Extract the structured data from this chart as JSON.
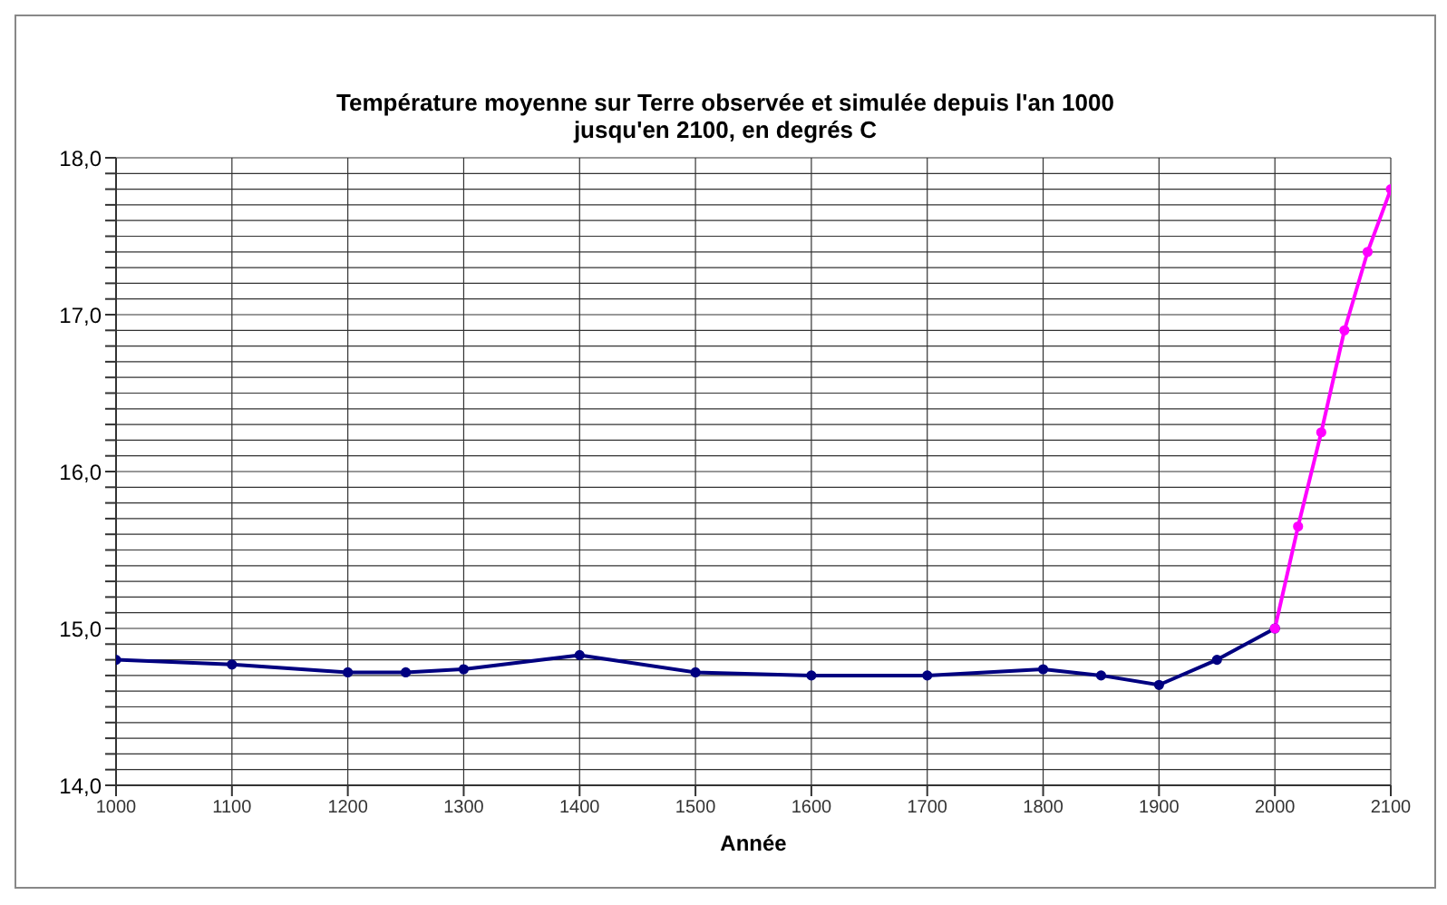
{
  "chart_data": {
    "type": "line",
    "title": "Température moyenne sur Terre observée et simulée depuis l'an 1000 jusqu'en 2100, en degrés C",
    "xlabel": "Année",
    "series": [
      {
        "color": "#000080",
        "x": [
          1000,
          1100,
          1200,
          1250,
          1300,
          1400,
          1500,
          1600,
          1700,
          1800,
          1850,
          1900,
          1950,
          2000
        ],
        "values": [
          14.8,
          14.77,
          14.72,
          14.72,
          14.74,
          14.83,
          14.72,
          14.7,
          14.7,
          14.74,
          14.7,
          14.64,
          14.8,
          15.0
        ]
      },
      {
        "color": "#ff00ff",
        "x": [
          2000,
          2020,
          2040,
          2060,
          2080,
          2100
        ],
        "values": [
          15.0,
          15.65,
          16.25,
          16.9,
          17.4,
          17.8
        ]
      }
    ],
    "xlim": [
      1000,
      2100
    ],
    "xticks": [
      1000,
      1100,
      1200,
      1300,
      1400,
      1500,
      1600,
      1700,
      1800,
      1900,
      2000,
      2100
    ],
    "ylim": [
      14,
      18
    ],
    "yticks": [
      {
        "value": 14,
        "label": "14,0"
      },
      {
        "value": 14.1,
        "label": null
      },
      {
        "value": 14.2,
        "label": null
      },
      {
        "value": 14.3,
        "label": null
      },
      {
        "value": 14.4,
        "label": null
      },
      {
        "value": 14.5,
        "label": null
      },
      {
        "value": 14.6,
        "label": null
      },
      {
        "value": 14.7,
        "label": null
      },
      {
        "value": 14.8,
        "label": null
      },
      {
        "value": 14.9,
        "label": null
      },
      {
        "value": 15,
        "label": "15,0"
      },
      {
        "value": 15.1,
        "label": null
      },
      {
        "value": 15.2,
        "label": null
      },
      {
        "value": 15.3,
        "label": null
      },
      {
        "value": 15.4,
        "label": null
      },
      {
        "value": 15.5,
        "label": null
      },
      {
        "value": 15.6,
        "label": null
      },
      {
        "value": 15.7,
        "label": null
      },
      {
        "value": 15.8,
        "label": null
      },
      {
        "value": 15.9,
        "label": null
      },
      {
        "value": 16,
        "label": "16,0"
      },
      {
        "value": 16.1,
        "label": null
      },
      {
        "value": 16.2,
        "label": null
      },
      {
        "value": 16.3,
        "label": null
      },
      {
        "value": 16.4,
        "label": null
      },
      {
        "value": 16.5,
        "label": null
      },
      {
        "value": 16.6,
        "label": null
      },
      {
        "value": 16.7,
        "label": null
      },
      {
        "value": 16.8,
        "label": null
      },
      {
        "value": 16.9,
        "label": null
      },
      {
        "value": 17,
        "label": "17,0"
      },
      {
        "value": 17.1,
        "label": null
      },
      {
        "value": 17.2,
        "label": null
      },
      {
        "value": 17.3,
        "label": null
      },
      {
        "value": 17.4,
        "label": null
      },
      {
        "value": 17.5,
        "label": null
      },
      {
        "value": 17.6,
        "label": null
      },
      {
        "value": 17.7,
        "label": null
      },
      {
        "value": 17.8,
        "label": null
      },
      {
        "value": 17.9,
        "label": null
      },
      {
        "value": 18,
        "label": "18,0"
      }
    ],
    "grid": true,
    "legend": false,
    "marker": "circle",
    "line_style": "solid"
  }
}
